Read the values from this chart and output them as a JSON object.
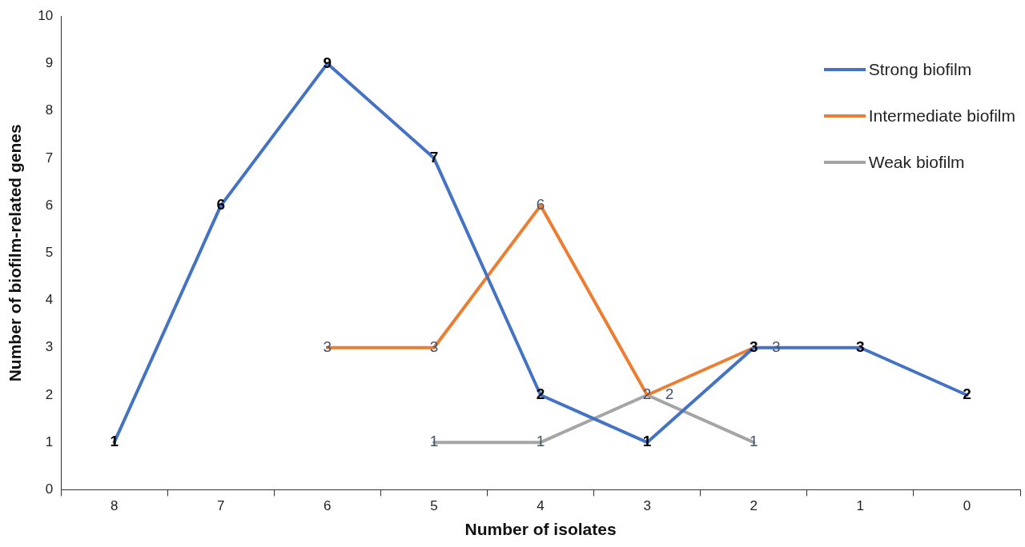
{
  "chart_data": {
    "type": "line",
    "xlabel": "Number of isolates",
    "ylabel": "Number of biofilm-related genes",
    "categories": [
      "8",
      "7",
      "6",
      "5",
      "4",
      "3",
      "2",
      "1",
      "0"
    ],
    "series": [
      {
        "name": "Strong biofilm",
        "color": "#4472c4",
        "values": [
          1,
          6,
          9,
          7,
          2,
          1,
          3,
          3,
          2
        ]
      },
      {
        "name": "Intermediate biofilm",
        "color": "#ed7d31",
        "values": [
          null,
          null,
          3,
          3,
          6,
          2,
          3,
          null,
          null
        ]
      },
      {
        "name": "Weak biofilm",
        "color": "#a5a5a5",
        "values": [
          null,
          null,
          null,
          1,
          1,
          2,
          1,
          null,
          null
        ]
      }
    ],
    "ylim": [
      0,
      10
    ],
    "yticks": [
      0,
      1,
      2,
      3,
      4,
      5,
      6,
      7,
      8,
      9,
      10
    ],
    "grid": false,
    "legend": "top right",
    "marker": "none",
    "line_style": "solid",
    "data_labels": true
  }
}
